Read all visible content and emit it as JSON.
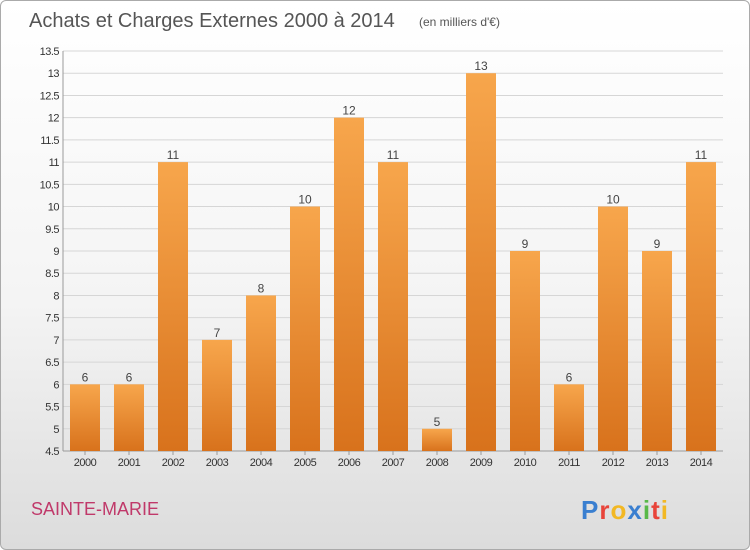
{
  "chart_data": {
    "type": "bar",
    "title": "Achats et Charges Externes 2000 à 2014",
    "subtitle": "(en milliers d'€)",
    "categories": [
      "2000",
      "2001",
      "2002",
      "2003",
      "2004",
      "2005",
      "2006",
      "2007",
      "2008",
      "2009",
      "2010",
      "2011",
      "2012",
      "2013",
      "2014"
    ],
    "values": [
      6,
      6,
      11,
      7,
      8,
      10,
      12,
      11,
      5,
      13,
      9,
      6,
      10,
      9,
      11
    ],
    "value_labels": [
      "6",
      "6",
      "11",
      "7",
      "8",
      "10",
      "12",
      "11",
      "5",
      "13",
      "9",
      "6",
      "10",
      "9",
      "11"
    ],
    "ylim": [
      4.5,
      13.5
    ],
    "yticks": [
      4.5,
      5,
      5.5,
      6,
      6.5,
      7,
      7.5,
      8,
      8.5,
      9,
      9.5,
      10,
      10.5,
      11,
      11.5,
      12,
      12.5,
      13,
      13.5
    ],
    "ytick_labels": [
      "4.5",
      "5",
      "5.5",
      "6",
      "6.5",
      "7",
      "7.5",
      "8",
      "8.5",
      "9",
      "9.5",
      "10",
      "10.5",
      "11",
      "11.5",
      "12",
      "12.5",
      "13",
      "13.5"
    ],
    "grid": true,
    "bar_color_light": "#f7a64c",
    "bar_color_dark": "#d8721c",
    "xlabel": "",
    "ylabel": ""
  },
  "location": "SAINTE-MARIE",
  "brand": {
    "letters": [
      "P",
      "r",
      "o",
      "x",
      "i",
      "t",
      "i"
    ],
    "colors": [
      "#3a7fd0",
      "#e8443a",
      "#f2b824",
      "#3a7fd0",
      "#58b848",
      "#e8443a",
      "#f2b824"
    ]
  }
}
